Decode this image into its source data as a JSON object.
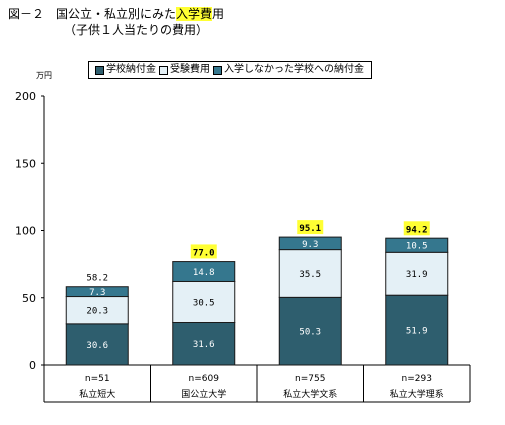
{
  "header": {
    "title_prefix": "図－２　国公立・私立別にみた",
    "title_highlight": "入学費",
    "title_suffix": "用",
    "subtitle": "（子供１人当たりの費用）",
    "unit": "万円"
  },
  "colors": {
    "tuition": "#2e5e6e",
    "exam": "#e4f0f6",
    "unused": "#35778e",
    "highlight": "#ffff33"
  },
  "legend": [
    {
      "label": "学校納付金",
      "color_key": "tuition"
    },
    {
      "label": "受験費用",
      "color_key": "exam"
    },
    {
      "label": "入学しなかった学校への納付金",
      "color_key": "unused"
    }
  ],
  "chart_data": {
    "type": "bar",
    "stacked": true,
    "categories": [
      "私立短大",
      "国公立大学",
      "私立大学文系",
      "私立大学理系"
    ],
    "sample_sizes": [
      "n=51",
      "n=609",
      "n=755",
      "n=293"
    ],
    "series": [
      {
        "name": "学校納付金",
        "values": [
          30.6,
          31.6,
          50.3,
          51.9
        ],
        "labels": [
          "30.6",
          "31.6",
          "50.3",
          "51.9"
        ]
      },
      {
        "name": "受験費用",
        "values": [
          20.3,
          30.5,
          35.5,
          31.9
        ],
        "labels": [
          "20.3",
          "30.5",
          "35.5",
          "31.9"
        ]
      },
      {
        "name": "入学しなかった学校への納付金",
        "values": [
          7.3,
          14.8,
          9.3,
          10.5
        ],
        "labels": [
          "7.3",
          "14.8",
          "9.3",
          "10.5"
        ]
      }
    ],
    "totals": [
      58.2,
      77.0,
      95.1,
      94.2
    ],
    "total_labels": [
      "58.2",
      "77.0",
      "95.1",
      "94.2"
    ],
    "total_highlighted": [
      false,
      true,
      true,
      true
    ],
    "yticks": [
      0,
      50,
      100,
      150,
      200
    ],
    "ylim": [
      0,
      200
    ],
    "grid": false
  }
}
